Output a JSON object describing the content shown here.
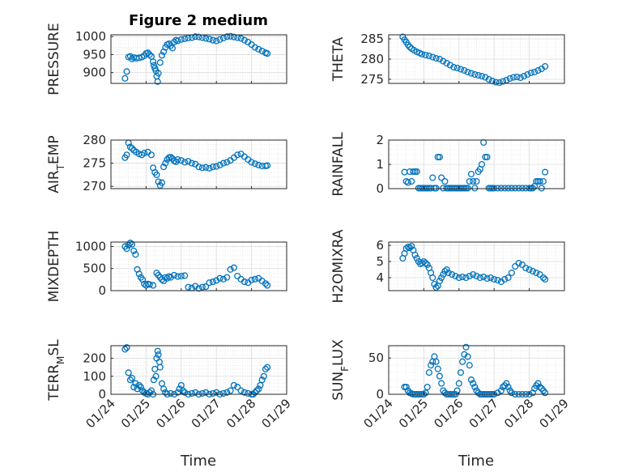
{
  "figure": {
    "title": "Figure 2 medium",
    "marker_color": "#0072BD",
    "axis_color": "#262626",
    "grid_color": "#dcdcdc"
  },
  "chart_data": [
    {
      "type": "scatter",
      "ylabel": "PRESSURE",
      "xlim": [
        "2021-01-24",
        "2021-01-29"
      ],
      "ylim": [
        870,
        1005
      ],
      "yticks": [
        900,
        950,
        1000
      ],
      "ytick_labels": [
        "900",
        "950",
        "1000"
      ],
      "grid": true,
      "x": [
        24.4,
        24.45,
        24.5,
        24.55,
        24.6,
        24.65,
        24.72,
        24.8,
        24.88,
        24.95,
        25.0,
        25.05,
        25.1,
        25.15,
        25.2,
        25.22,
        25.25,
        25.28,
        25.3,
        25.33,
        25.35,
        25.4,
        25.45,
        25.5,
        25.55,
        25.6,
        25.65,
        25.7,
        25.75,
        25.8,
        25.85,
        25.9,
        26.0,
        26.1,
        26.2,
        26.3,
        26.4,
        26.5,
        26.6,
        26.7,
        26.8,
        26.9,
        27.0,
        27.1,
        27.2,
        27.3,
        27.4,
        27.5,
        27.6,
        27.7,
        27.8,
        27.9,
        28.0,
        28.1,
        28.2,
        28.3,
        28.4,
        28.45
      ],
      "y": [
        884,
        903,
        943,
        945,
        938,
        942,
        940,
        941,
        943,
        947,
        953,
        955,
        950,
        945,
        930,
        920,
        912,
        905,
        890,
        875,
        898,
        928,
        948,
        958,
        970,
        978,
        980,
        975,
        968,
        985,
        990,
        988,
        992,
        994,
        996,
        997,
        1000,
        999,
        997,
        995,
        993,
        990,
        988,
        992,
        996,
        1000,
        1001,
        999,
        997,
        995,
        990,
        985,
        978,
        970,
        965,
        960,
        955,
        953
      ]
    },
    {
      "type": "scatter",
      "ylabel": "THETA",
      "xlim": [
        "2021-01-24",
        "2021-01-29"
      ],
      "ylim": [
        274,
        286
      ],
      "yticks": [
        275,
        280,
        285
      ],
      "ytick_labels": [
        "275",
        "280",
        "285"
      ],
      "grid": true,
      "x": [
        24.4,
        24.45,
        24.5,
        24.55,
        24.6,
        24.65,
        24.72,
        24.8,
        24.88,
        24.95,
        25.05,
        25.15,
        25.25,
        25.35,
        25.45,
        25.55,
        25.65,
        25.75,
        25.85,
        25.95,
        26.05,
        26.15,
        26.25,
        26.35,
        26.45,
        26.55,
        26.65,
        26.75,
        26.85,
        26.95,
        27.05,
        27.15,
        27.25,
        27.35,
        27.45,
        27.55,
        27.65,
        27.75,
        27.85,
        27.95,
        28.05,
        28.15,
        28.25,
        28.35,
        28.45
      ],
      "y": [
        285.5,
        284.8,
        284.2,
        283.5,
        283.0,
        282.6,
        282.2,
        281.8,
        281.5,
        281.2,
        281.0,
        280.8,
        280.5,
        280.2,
        280.0,
        279.5,
        279.0,
        278.5,
        278.0,
        277.8,
        277.5,
        277.2,
        276.8,
        276.5,
        276.2,
        276.0,
        275.8,
        275.5,
        275.0,
        274.6,
        274.3,
        274.2,
        274.5,
        274.8,
        275.2,
        275.5,
        275.6,
        275.4,
        275.8,
        276.2,
        276.6,
        276.8,
        277.2,
        277.6,
        278.2
      ]
    },
    {
      "type": "scatter",
      "ylabel": "AIR_TEMP",
      "xlim": [
        "2021-01-24",
        "2021-01-29"
      ],
      "ylim": [
        269.5,
        280
      ],
      "yticks": [
        270,
        275,
        280
      ],
      "ytick_labels": [
        "270",
        "275",
        "280"
      ],
      "grid": true,
      "x": [
        24.4,
        24.45,
        24.5,
        24.55,
        24.6,
        24.65,
        24.72,
        24.8,
        24.88,
        24.95,
        25.05,
        25.15,
        25.2,
        25.25,
        25.3,
        25.35,
        25.4,
        25.45,
        25.5,
        25.55,
        25.6,
        25.65,
        25.7,
        25.75,
        25.8,
        25.85,
        25.9,
        26.0,
        26.1,
        26.2,
        26.3,
        26.4,
        26.5,
        26.6,
        26.7,
        26.8,
        26.9,
        27.0,
        27.1,
        27.2,
        27.3,
        27.4,
        27.5,
        27.6,
        27.7,
        27.8,
        27.9,
        28.0,
        28.1,
        28.2,
        28.3,
        28.4,
        28.45
      ],
      "y": [
        276.2,
        276.8,
        279.4,
        278.5,
        278.2,
        277.8,
        277.4,
        277.0,
        276.8,
        277.2,
        277.4,
        276.8,
        274.0,
        273.0,
        272.5,
        271.0,
        270.2,
        270.8,
        274.2,
        275.0,
        275.8,
        276.2,
        276.3,
        276.0,
        275.5,
        275.3,
        275.8,
        275.6,
        275.2,
        275.4,
        275.0,
        274.8,
        274.2,
        274.0,
        274.1,
        273.9,
        274.2,
        274.3,
        274.6,
        275.0,
        275.2,
        275.6,
        276.2,
        276.8,
        277.0,
        276.4,
        275.8,
        275.2,
        274.9,
        274.6,
        274.4,
        274.4,
        274.5
      ]
    },
    {
      "type": "scatter",
      "ylabel": "RAINFALL",
      "xlim": [
        "2021-01-24",
        "2021-01-29"
      ],
      "ylim": [
        0,
        2
      ],
      "yticks": [
        0,
        1,
        2
      ],
      "ytick_labels": [
        "0",
        "1",
        "2"
      ],
      "grid": true,
      "x": [
        24.45,
        24.5,
        24.55,
        24.6,
        24.65,
        24.7,
        24.75,
        24.8,
        24.85,
        24.9,
        24.95,
        25.0,
        25.05,
        25.1,
        25.15,
        25.2,
        25.25,
        25.3,
        25.35,
        25.4,
        25.45,
        25.5,
        25.55,
        25.6,
        25.65,
        25.7,
        25.75,
        25.8,
        25.85,
        25.9,
        25.95,
        26.0,
        26.05,
        26.1,
        26.15,
        26.2,
        26.25,
        26.3,
        26.35,
        26.4,
        26.45,
        26.5,
        26.55,
        26.6,
        26.65,
        26.7,
        26.75,
        26.8,
        26.85,
        26.9,
        26.95,
        27.0,
        27.1,
        27.2,
        27.3,
        27.4,
        27.5,
        27.6,
        27.7,
        27.8,
        27.9,
        28.0,
        28.05,
        28.1,
        28.15,
        28.2,
        28.25,
        28.3,
        28.35,
        28.4,
        28.45
      ],
      "y": [
        0.68,
        0.3,
        0.25,
        0.7,
        0.3,
        0.7,
        0.7,
        0.7,
        0.02,
        0.02,
        0.02,
        0.02,
        0.02,
        0.02,
        0.02,
        0.02,
        0.45,
        0.02,
        0.02,
        1.3,
        1.3,
        0.45,
        0.02,
        0.3,
        0.02,
        0.02,
        0.02,
        0.02,
        0.02,
        0.02,
        0.02,
        0.02,
        0.02,
        0.02,
        0.02,
        0.02,
        0.02,
        0.3,
        0.6,
        0.3,
        0.02,
        0.3,
        0.7,
        0.8,
        1.0,
        1.9,
        1.3,
        1.3,
        0.02,
        0.02,
        0.02,
        0.02,
        0.02,
        0.02,
        0.02,
        0.02,
        0.02,
        0.02,
        0.02,
        0.02,
        0.02,
        0.02,
        0.02,
        0.02,
        0.1,
        0.3,
        0.3,
        0.3,
        0.02,
        0.3,
        0.68
      ]
    },
    {
      "type": "scatter",
      "ylabel": "MIXDEPTH",
      "xlim": [
        "2021-01-24",
        "2021-01-29"
      ],
      "ylim": [
        0,
        1100
      ],
      "yticks": [
        0,
        500,
        1000
      ],
      "ytick_labels": [
        "0",
        "500",
        "1000"
      ],
      "grid": true,
      "x": [
        24.4,
        24.45,
        24.5,
        24.55,
        24.6,
        24.65,
        24.7,
        24.75,
        24.8,
        24.85,
        24.9,
        24.95,
        25.0,
        25.05,
        25.1,
        25.2,
        25.3,
        25.35,
        25.4,
        25.45,
        25.5,
        25.55,
        25.6,
        25.65,
        25.7,
        25.8,
        25.9,
        26.0,
        26.1,
        26.2,
        26.3,
        26.4,
        26.5,
        26.6,
        26.7,
        26.8,
        26.9,
        27.0,
        27.1,
        27.2,
        27.3,
        27.4,
        27.5,
        27.6,
        27.7,
        27.8,
        27.9,
        28.0,
        28.1,
        28.2,
        28.3,
        28.4,
        28.45
      ],
      "y": [
        1000,
        950,
        1030,
        1080,
        1050,
        900,
        820,
        480,
        380,
        300,
        250,
        150,
        120,
        150,
        140,
        120,
        400,
        350,
        300,
        250,
        220,
        300,
        280,
        320,
        300,
        350,
        320,
        330,
        340,
        80,
        60,
        100,
        50,
        80,
        90,
        180,
        200,
        230,
        280,
        260,
        300,
        480,
        520,
        330,
        260,
        200,
        180,
        240,
        260,
        280,
        220,
        160,
        120
      ]
    },
    {
      "type": "scatter",
      "ylabel": "H2OMIXRA",
      "xlim": [
        "2021-01-24",
        "2021-01-29"
      ],
      "ylim": [
        3.2,
        6.2
      ],
      "yticks": [
        4,
        5,
        6
      ],
      "ytick_labels": [
        "4",
        "5",
        "6"
      ],
      "grid": true,
      "x": [
        24.4,
        24.45,
        24.5,
        24.55,
        24.6,
        24.65,
        24.7,
        24.75,
        24.8,
        24.85,
        24.9,
        24.95,
        25.0,
        25.05,
        25.1,
        25.15,
        25.2,
        25.25,
        25.3,
        25.35,
        25.4,
        25.45,
        25.5,
        25.55,
        25.6,
        25.65,
        25.7,
        25.8,
        25.9,
        26.0,
        26.1,
        26.2,
        26.3,
        26.4,
        26.5,
        26.6,
        26.7,
        26.8,
        26.9,
        27.0,
        27.1,
        27.2,
        27.3,
        27.4,
        27.5,
        27.6,
        27.7,
        27.8,
        27.9,
        28.0,
        28.1,
        28.2,
        28.3,
        28.4,
        28.45
      ],
      "y": [
        5.2,
        5.5,
        5.8,
        5.9,
        5.85,
        5.95,
        5.7,
        5.4,
        5.2,
        5.0,
        4.85,
        4.9,
        5.0,
        4.9,
        4.8,
        4.6,
        4.3,
        4.0,
        3.6,
        3.4,
        3.5,
        3.8,
        4.0,
        4.2,
        4.4,
        4.5,
        4.3,
        4.2,
        4.1,
        4.0,
        4.05,
        4.0,
        4.1,
        4.2,
        4.1,
        4.0,
        4.05,
        3.95,
        4.0,
        3.9,
        3.85,
        3.75,
        3.9,
        4.0,
        4.3,
        4.7,
        4.9,
        4.8,
        4.6,
        4.5,
        4.4,
        4.3,
        4.2,
        4.0,
        3.9
      ]
    },
    {
      "type": "scatter",
      "ylabel": "TERR_MSL",
      "xlim": [
        "2021-01-24",
        "2021-01-29"
      ],
      "ylim": [
        0,
        270
      ],
      "yticks": [
        0,
        100,
        200
      ],
      "ytick_labels": [
        "0",
        "100",
        "200"
      ],
      "grid": true,
      "x": [
        24.4,
        24.45,
        24.5,
        24.55,
        24.6,
        24.65,
        24.7,
        24.75,
        24.8,
        24.85,
        24.9,
        24.95,
        25.0,
        25.05,
        25.1,
        25.15,
        25.2,
        25.22,
        25.25,
        25.28,
        25.3,
        25.33,
        25.35,
        25.38,
        25.4,
        25.45,
        25.5,
        25.55,
        25.6,
        25.7,
        25.8,
        25.9,
        25.95,
        26.0,
        26.05,
        26.1,
        26.2,
        26.3,
        26.4,
        26.5,
        26.6,
        26.7,
        26.8,
        26.9,
        27.0,
        27.1,
        27.2,
        27.3,
        27.4,
        27.5,
        27.6,
        27.7,
        27.8,
        27.9,
        28.0,
        28.05,
        28.1,
        28.15,
        28.2,
        28.25,
        28.3,
        28.35,
        28.4,
        28.45
      ],
      "y": [
        250,
        260,
        120,
        80,
        90,
        40,
        60,
        30,
        50,
        40,
        20,
        10,
        5,
        0,
        10,
        20,
        0,
        80,
        140,
        100,
        200,
        240,
        220,
        180,
        150,
        60,
        30,
        10,
        0,
        5,
        0,
        10,
        30,
        50,
        20,
        10,
        0,
        5,
        10,
        0,
        5,
        10,
        0,
        5,
        10,
        0,
        5,
        10,
        20,
        50,
        40,
        20,
        10,
        5,
        0,
        0,
        10,
        20,
        30,
        50,
        80,
        100,
        140,
        150
      ]
    },
    {
      "type": "scatter",
      "ylabel": "SUN_FLUX",
      "xlim": [
        "2021-01-24",
        "2021-01-29"
      ],
      "ylim": [
        0,
        67
      ],
      "yticks": [
        0,
        50
      ],
      "ytick_labels": [
        "0",
        "50"
      ],
      "grid": true,
      "x": [
        24.45,
        24.5,
        24.55,
        24.6,
        24.65,
        24.7,
        24.75,
        24.8,
        24.85,
        24.9,
        24.95,
        25.0,
        25.05,
        25.1,
        25.15,
        25.2,
        25.25,
        25.3,
        25.35,
        25.4,
        25.45,
        25.5,
        25.55,
        25.6,
        25.65,
        25.7,
        25.75,
        25.8,
        25.85,
        25.9,
        25.95,
        26.0,
        26.05,
        26.1,
        26.15,
        26.2,
        26.25,
        26.3,
        26.35,
        26.4,
        26.45,
        26.5,
        26.55,
        26.6,
        26.65,
        26.7,
        26.75,
        26.8,
        26.85,
        26.9,
        26.95,
        27.0,
        27.1,
        27.2,
        27.25,
        27.3,
        27.35,
        27.4,
        27.45,
        27.5,
        27.6,
        27.7,
        27.8,
        27.9,
        28.0,
        28.1,
        28.15,
        28.2,
        28.25,
        28.3,
        28.35,
        28.4,
        28.45
      ],
      "y": [
        10,
        10,
        5,
        2,
        1,
        0,
        0,
        0,
        0,
        0,
        0,
        0,
        2,
        10,
        30,
        40,
        45,
        52,
        45,
        35,
        25,
        15,
        5,
        2,
        0,
        0,
        0,
        0,
        0,
        0,
        5,
        15,
        30,
        45,
        55,
        65,
        52,
        40,
        20,
        15,
        10,
        5,
        2,
        0,
        0,
        0,
        0,
        0,
        0,
        0,
        0,
        0,
        2,
        5,
        10,
        12,
        15,
        10,
        5,
        2,
        0,
        0,
        0,
        0,
        0,
        2,
        8,
        12,
        15,
        10,
        8,
        5,
        2
      ]
    }
  ],
  "x_axis": {
    "tick_values": [
      "01/24",
      "01/25",
      "01/26",
      "01/27",
      "01/28",
      "01/29"
    ],
    "label": "Time"
  }
}
